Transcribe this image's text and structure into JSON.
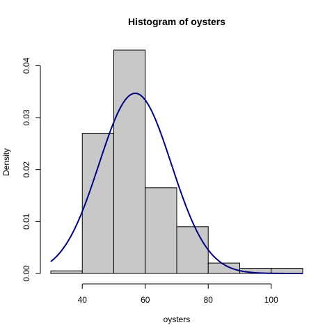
{
  "chart_data": {
    "type": "bar",
    "title": "Histogram of oysters",
    "xlabel": "oysters",
    "ylabel": "Density",
    "bins": [
      {
        "start": 30,
        "end": 40,
        "density": 0.0005
      },
      {
        "start": 40,
        "end": 50,
        "density": 0.027
      },
      {
        "start": 50,
        "end": 60,
        "density": 0.043
      },
      {
        "start": 60,
        "end": 70,
        "density": 0.0165
      },
      {
        "start": 70,
        "end": 80,
        "density": 0.009
      },
      {
        "start": 80,
        "end": 90,
        "density": 0.002
      },
      {
        "start": 90,
        "end": 100,
        "density": 0.001
      },
      {
        "start": 100,
        "end": 110,
        "density": 0.001
      }
    ],
    "xlim": [
      30,
      110
    ],
    "ylim": [
      0,
      0.043
    ],
    "x_ticks": [
      40,
      60,
      80,
      100
    ],
    "x_tick_labels": [
      "40",
      "60",
      "80",
      "100"
    ],
    "y_ticks": [
      0,
      0.01,
      0.02,
      0.03,
      0.04
    ],
    "y_tick_labels": [
      "0.00",
      "0.01",
      "0.02",
      "0.03",
      "0.04"
    ],
    "curve": {
      "type": "normal-density",
      "mean": 56.8,
      "sd": 11.5,
      "x_range": [
        30,
        110
      ],
      "color": "#000080"
    },
    "bar_fill": "#c8c8c8",
    "grid": false
  }
}
